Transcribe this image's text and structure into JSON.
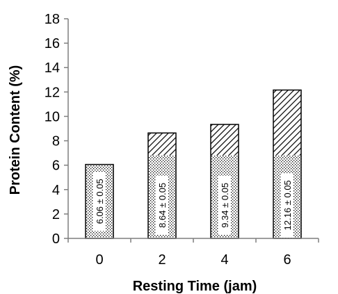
{
  "chart_data": {
    "type": "bar",
    "categories": [
      "0",
      "2",
      "4",
      "6"
    ],
    "values": [
      6.06,
      8.64,
      9.34,
      12.16
    ],
    "data_labels": [
      "6.06 ± 0.05",
      "8.64 ± 0.05",
      "9.34 ± 0.05",
      "12.16 ± 0.05"
    ],
    "xlabel": "Resting Time (jam)",
    "ylabel": "Protein Content  (%)",
    "ylim": [
      0,
      18
    ],
    "yticks": [
      "0",
      "2",
      "4",
      "6",
      "8",
      "10",
      "12",
      "14",
      "16",
      "18"
    ],
    "grid": false,
    "legend": "none",
    "bar_fill": "#ffffff",
    "bar_stroke": "#000000"
  }
}
